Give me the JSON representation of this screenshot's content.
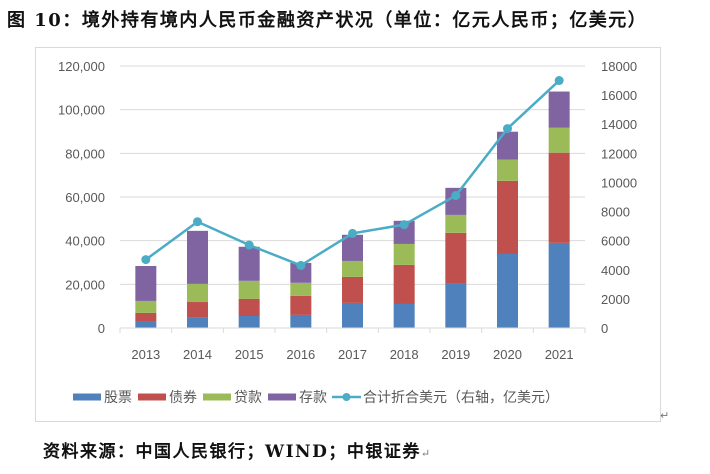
{
  "title": "图 10：境外持有境内人民币金融资产状况（单位：亿元人民币；亿美元）",
  "source": "资料来源：中国人民银行；WIND；中银证券",
  "return_mark": "↵",
  "colors": {
    "stocks": "#4f81bd",
    "bonds": "#c0504d",
    "loans": "#9bbb59",
    "deposits": "#8064a2",
    "total_usd": "#4bacc6",
    "grid": "#d9d9d9",
    "axis_text": "#595959"
  },
  "chart_data": {
    "type": "bar",
    "stacked": true,
    "title": "",
    "xlabel": "",
    "ylabel": "",
    "categories": [
      "2013",
      "2014",
      "2015",
      "2016",
      "2017",
      "2018",
      "2019",
      "2020",
      "2021"
    ],
    "series": [
      {
        "name": "股票",
        "type": "bar",
        "axis": "left",
        "color_key": "stocks",
        "values": [
          3200,
          5000,
          5500,
          6000,
          11500,
          11000,
          20600,
          33900,
          39000
        ]
      },
      {
        "name": "债券",
        "type": "bar",
        "axis": "left",
        "color_key": "bonds",
        "values": [
          3700,
          6900,
          7800,
          8700,
          11900,
          17900,
          23000,
          33500,
          41300
        ]
      },
      {
        "name": "贷款",
        "type": "bar",
        "axis": "left",
        "color_key": "loans",
        "values": [
          5500,
          8300,
          8300,
          6000,
          7300,
          9600,
          8200,
          9700,
          11400
        ]
      },
      {
        "name": "存款",
        "type": "bar",
        "axis": "left",
        "color_key": "deposits",
        "values": [
          16000,
          24300,
          15600,
          9100,
          12000,
          10600,
          12400,
          12800,
          16600
        ]
      },
      {
        "name": "合计折合美元（右轴，亿美元）",
        "type": "line",
        "axis": "right",
        "color_key": "total_usd",
        "values": [
          4700,
          7300,
          5700,
          4300,
          6500,
          7100,
          9100,
          13700,
          17000
        ]
      }
    ],
    "y_left": {
      "range": [
        0,
        120000
      ],
      "ticks": [
        0,
        20000,
        40000,
        60000,
        80000,
        100000,
        120000
      ],
      "tick_labels": [
        "0",
        "20,000",
        "40,000",
        "60,000",
        "80,000",
        "100,000",
        "120,000"
      ]
    },
    "y_right": {
      "range": [
        0,
        18000
      ],
      "ticks": [
        0,
        2000,
        4000,
        6000,
        8000,
        10000,
        12000,
        14000,
        16000,
        18000
      ],
      "tick_labels": [
        "0",
        "2000",
        "4000",
        "6000",
        "8000",
        "10000",
        "12000",
        "14000",
        "16000",
        "18000"
      ]
    },
    "grid": true,
    "legend_position": "bottom"
  }
}
